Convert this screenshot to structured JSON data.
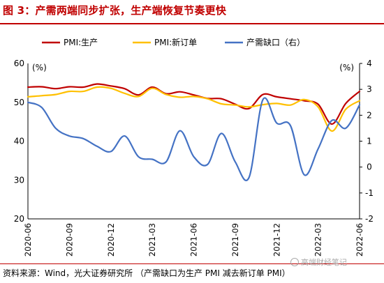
{
  "title": "图 3：产需两端同步扩张，生产端恢复节奏更快",
  "source": "资料来源：Wind，光大证券研究所    （产需缺口为生产 PMI 减去新订单 PMI）",
  "watermark": "高端财经笔记",
  "colors": {
    "title": "#c00000",
    "production": "#c00000",
    "new_orders": "#ffc000",
    "gap": "#4472c4"
  },
  "chart_data": {
    "type": "line",
    "title": "",
    "legend_placement": "top",
    "grid": false,
    "left_axis": {
      "unit_label": "(%)",
      "ylim": [
        20,
        60
      ],
      "ticks": [
        "60",
        "50",
        "40",
        "30",
        "20"
      ]
    },
    "right_axis": {
      "unit_label": "(%)",
      "ylim": [
        -2,
        4
      ],
      "ticks": [
        "4",
        "3",
        "2",
        "1",
        "0",
        "-1",
        "-2"
      ]
    },
    "x_tick_labels": [
      "2020-06",
      "2020-09",
      "2020-12",
      "2021-03",
      "2021-06",
      "2021-09",
      "2021-12",
      "2022-03",
      "2022-06"
    ],
    "x": [
      "2020-06",
      "2020-07",
      "2020-08",
      "2020-09",
      "2020-10",
      "2020-11",
      "2020-12",
      "2021-01",
      "2021-02",
      "2021-03",
      "2021-04",
      "2021-05",
      "2021-06",
      "2021-07",
      "2021-08",
      "2021-09",
      "2021-10",
      "2021-11",
      "2021-12",
      "2022-01",
      "2022-02",
      "2022-03",
      "2022-04",
      "2022-05",
      "2022-06"
    ],
    "series": [
      {
        "name": "PMI:生产",
        "axis": "left",
        "values": [
          53.9,
          54.0,
          53.5,
          54.0,
          53.9,
          54.7,
          54.2,
          53.5,
          51.9,
          53.9,
          52.2,
          52.7,
          51.9,
          51.0,
          50.9,
          49.5,
          48.4,
          52.0,
          51.4,
          50.9,
          50.4,
          49.5,
          44.4,
          49.7,
          52.8
        ]
      },
      {
        "name": "PMI:新订单",
        "axis": "left",
        "values": [
          51.4,
          51.7,
          52.0,
          52.8,
          52.8,
          53.9,
          53.6,
          52.3,
          51.5,
          53.6,
          52.0,
          51.3,
          51.5,
          50.9,
          49.6,
          49.3,
          48.8,
          49.4,
          49.7,
          49.3,
          50.7,
          48.8,
          42.6,
          48.2,
          50.4
        ]
      },
      {
        "name": "产需缺口（右）",
        "axis": "right",
        "values": [
          2.5,
          2.3,
          1.5,
          1.2,
          1.1,
          0.8,
          0.6,
          1.2,
          0.4,
          0.3,
          0.2,
          1.4,
          0.4,
          0.1,
          1.3,
          0.2,
          -0.4,
          2.6,
          1.7,
          1.6,
          -0.3,
          0.7,
          1.8,
          1.5,
          2.4
        ]
      }
    ]
  }
}
